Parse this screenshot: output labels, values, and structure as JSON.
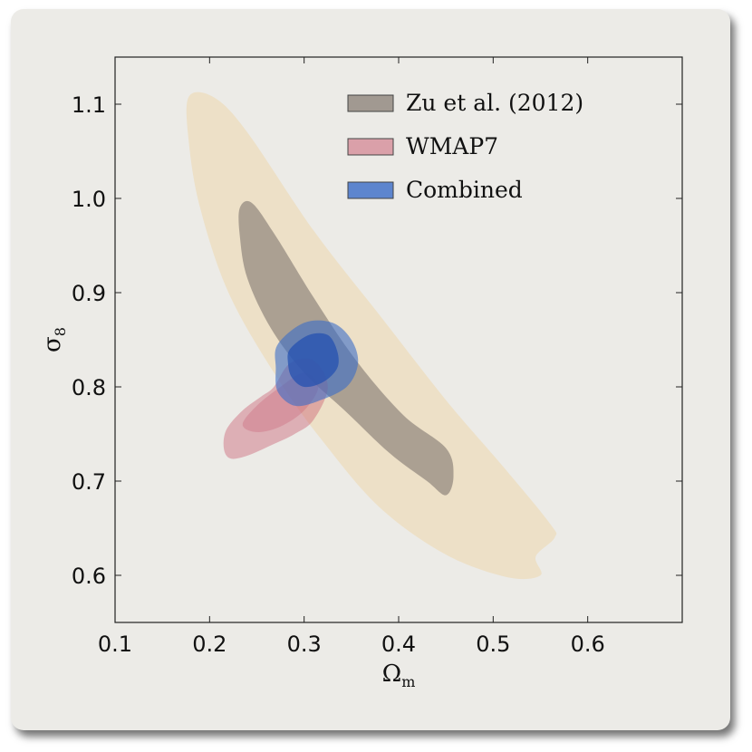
{
  "chart_data": {
    "type": "contour",
    "xlabel": "Ω",
    "xlabel_sub": "m",
    "ylabel": "σ",
    "ylabel_sub": "8",
    "xlim": [
      0.1,
      0.7
    ],
    "ylim": [
      0.55,
      1.15
    ],
    "xticks": [
      "0.1",
      "0.2",
      "0.3",
      "0.4",
      "0.5",
      "0.6"
    ],
    "yticks": [
      "1.1",
      "1.0",
      "0.9",
      "0.8",
      "0.7",
      "0.6"
    ],
    "legend_position": "top-right",
    "series": [
      {
        "name": "Zu et al. (2012)",
        "color": "#8e847c",
        "outer_color": "#eedcbc",
        "contours": {
          "outer": [
            [
              0.178,
              1.108
            ],
            [
              0.205,
              1.107
            ],
            [
              0.24,
              1.07
            ],
            [
              0.31,
              0.966
            ],
            [
              0.38,
              0.876
            ],
            [
              0.45,
              0.786
            ],
            [
              0.51,
              0.716
            ],
            [
              0.56,
              0.655
            ],
            [
              0.565,
              0.64
            ],
            [
              0.545,
              0.62
            ],
            [
              0.55,
              0.6
            ],
            [
              0.515,
              0.598
            ],
            [
              0.45,
              0.622
            ],
            [
              0.38,
              0.672
            ],
            [
              0.32,
              0.742
            ],
            [
              0.27,
              0.812
            ],
            [
              0.22,
              0.9
            ],
            [
              0.19,
              0.99
            ],
            [
              0.178,
              1.06
            ]
          ],
          "inner": [
            [
              0.232,
              0.99
            ],
            [
              0.245,
              0.995
            ],
            [
              0.27,
              0.96
            ],
            [
              0.31,
              0.895
            ],
            [
              0.355,
              0.828
            ],
            [
              0.405,
              0.77
            ],
            [
              0.45,
              0.735
            ],
            [
              0.458,
              0.705
            ],
            [
              0.45,
              0.685
            ],
            [
              0.43,
              0.7
            ],
            [
              0.39,
              0.73
            ],
            [
              0.345,
              0.773
            ],
            [
              0.3,
              0.815
            ],
            [
              0.265,
              0.862
            ],
            [
              0.24,
              0.915
            ],
            [
              0.232,
              0.96
            ]
          ]
        }
      },
      {
        "name": "WMAP7",
        "color": "#c8556c",
        "contours": {
          "outer": [
            [
              0.268,
              0.8
            ],
            [
              0.285,
              0.825
            ],
            [
              0.31,
              0.828
            ],
            [
              0.325,
              0.8
            ],
            [
              0.31,
              0.765
            ],
            [
              0.29,
              0.75
            ],
            [
              0.265,
              0.738
            ],
            [
              0.24,
              0.727
            ],
            [
              0.222,
              0.724
            ],
            [
              0.215,
              0.735
            ],
            [
              0.218,
              0.755
            ],
            [
              0.235,
              0.775
            ],
            [
              0.255,
              0.79
            ]
          ],
          "inner": [
            [
              0.275,
              0.8
            ],
            [
              0.3,
              0.815
            ],
            [
              0.315,
              0.8
            ],
            [
              0.3,
              0.775
            ],
            [
              0.275,
              0.758
            ],
            [
              0.25,
              0.752
            ],
            [
              0.235,
              0.76
            ],
            [
              0.25,
              0.78
            ]
          ]
        }
      },
      {
        "name": "Combined",
        "color": "#3a6cc8",
        "contours": {
          "outer": [
            [
              0.272,
              0.845
            ],
            [
              0.3,
              0.868
            ],
            [
              0.33,
              0.868
            ],
            [
              0.35,
              0.85
            ],
            [
              0.357,
              0.825
            ],
            [
              0.345,
              0.8
            ],
            [
              0.315,
              0.785
            ],
            [
              0.29,
              0.78
            ],
            [
              0.272,
              0.795
            ],
            [
              0.27,
              0.82
            ]
          ],
          "inner": [
            [
              0.285,
              0.84
            ],
            [
              0.305,
              0.855
            ],
            [
              0.325,
              0.855
            ],
            [
              0.335,
              0.838
            ],
            [
              0.335,
              0.82
            ],
            [
              0.32,
              0.805
            ],
            [
              0.3,
              0.8
            ],
            [
              0.287,
              0.81
            ],
            [
              0.283,
              0.825
            ]
          ]
        }
      }
    ]
  }
}
